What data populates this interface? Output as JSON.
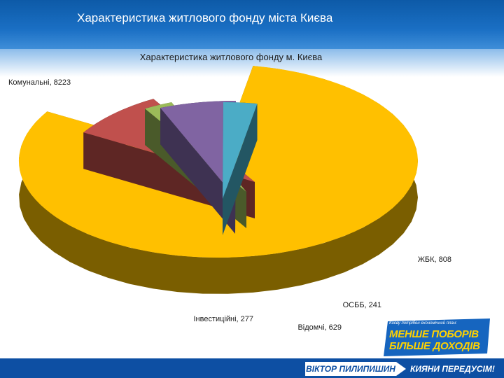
{
  "slide": {
    "title": "Характеристика житлового фонду міста Києва"
  },
  "chart_data": {
    "type": "pie",
    "title": "Характеристика житлового фонду м.  Києва",
    "categories": [
      "Комунальні",
      "ЖБК",
      "ОСББ",
      "Відомчі",
      "Інвестиційні"
    ],
    "values": [
      8223,
      808,
      241,
      629,
      277
    ],
    "labels": [
      "Комунальні, 8223",
      "ЖБК, 808",
      "ОСББ, 241",
      "Відомчі, 629",
      "Інвестиційні, 277"
    ],
    "colors": [
      "#ffc000",
      "#c0504d",
      "#9bbb59",
      "#8064a2",
      "#4bacc6"
    ],
    "side_colors": [
      "#7a5e00",
      "#5e2624",
      "#4a5a2a",
      "#3e3252",
      "#235663"
    ],
    "legend": "none"
  },
  "banner": {
    "tagline": "Києву потрібен економічний план:",
    "line1": "МЕНШЕ ПОБОРІВ",
    "line2": "БІЛЬШЕ ДОХОДІВ",
    "exclamation": "!"
  },
  "footer": {
    "left": "ВІКТОР ПИЛИПИШИН",
    "right": "КИЯНИ ПЕРЕДУСІМ!"
  }
}
